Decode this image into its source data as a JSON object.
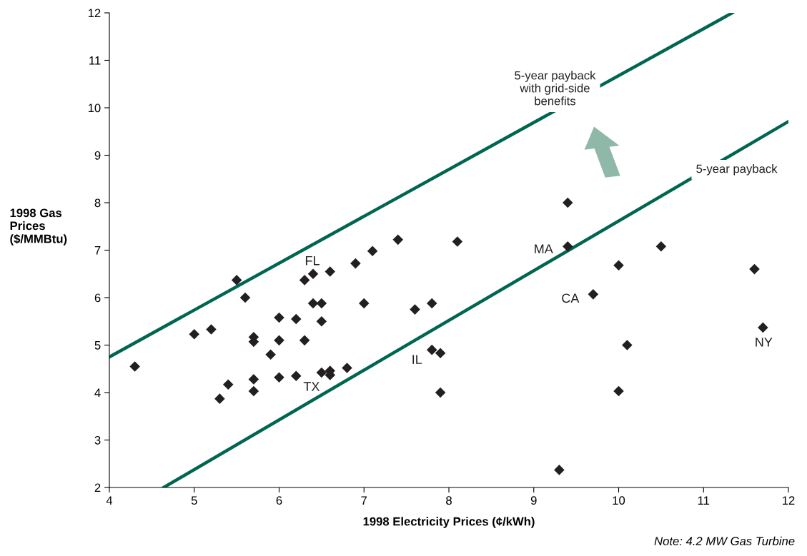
{
  "chart_data": {
    "type": "scatter",
    "xlabel": "1998 Electricity Prices (¢/kWh)",
    "ylabel": "1998 Gas\nPrices\n($/MMBtu)",
    "xlim": [
      4,
      12
    ],
    "xticks": [
      4,
      5,
      6,
      7,
      8,
      9,
      10,
      11,
      12
    ],
    "ylim": [
      2,
      12
    ],
    "yticks": [
      2,
      3,
      4,
      5,
      6,
      7,
      8,
      9,
      10,
      11,
      12
    ],
    "grid": false,
    "legend": false,
    "series": [
      {
        "marker": "diamond",
        "color": "#231f20",
        "x": [
          4.3,
          5.0,
          5.2,
          5.5,
          5.6,
          5.7,
          5.7,
          5.7,
          5.7,
          5.3,
          5.4,
          5.9,
          6.0,
          6.0,
          6.0,
          6.2,
          6.2,
          6.3,
          6.3,
          6.4,
          6.4,
          6.5,
          6.5,
          6.5,
          6.6,
          6.6,
          6.6,
          6.8,
          6.9,
          7.0,
          7.1,
          7.4,
          7.6,
          7.8,
          7.8,
          7.9,
          7.9,
          8.1,
          9.4,
          9.4,
          9.7,
          9.3,
          10.0,
          10.0,
          10.1,
          10.5,
          11.6,
          11.7
        ],
        "values": [
          4.55,
          5.23,
          5.33,
          6.37,
          6.0,
          5.17,
          5.07,
          4.28,
          4.03,
          3.87,
          4.17,
          4.8,
          5.58,
          5.1,
          4.32,
          5.55,
          4.35,
          6.37,
          5.1,
          6.5,
          5.88,
          5.88,
          5.5,
          4.42,
          6.55,
          4.46,
          4.37,
          4.52,
          6.72,
          5.88,
          6.98,
          7.22,
          5.75,
          5.88,
          4.9,
          4.83,
          4.0,
          7.18,
          8.0,
          7.08,
          6.07,
          2.37,
          6.68,
          4.03,
          5.0,
          7.08,
          6.6,
          5.37
        ]
      },
      {
        "type": "line",
        "color": "#006650",
        "x": [
          4,
          11.34
        ],
        "values": [
          4.75,
          12
        ]
      },
      {
        "type": "line",
        "color": "#006650",
        "x": [
          4.64,
          12
        ],
        "values": [
          2,
          9.71
        ]
      }
    ],
    "annotations": [
      {
        "text": "FL",
        "x": 6.4,
        "y": 6.5
      },
      {
        "text": "TX",
        "x": 6.5,
        "y": 4.42
      },
      {
        "text": "IL",
        "x": 7.8,
        "y": 4.9
      },
      {
        "text": "MA",
        "x": 9.4,
        "y": 7.08
      },
      {
        "text": "CA",
        "x": 9.7,
        "y": 6.07
      },
      {
        "text": "NY",
        "x": 11.7,
        "y": 5.37
      },
      {
        "text": "5-year payback",
        "x": 11.39,
        "y": 9.07
      },
      {
        "text": "5-year payback\nwith grid-side\nbenefits",
        "x": 9.25,
        "y": 9.94
      },
      "Note: 4.2 MW Gas Turbine"
    ]
  }
}
